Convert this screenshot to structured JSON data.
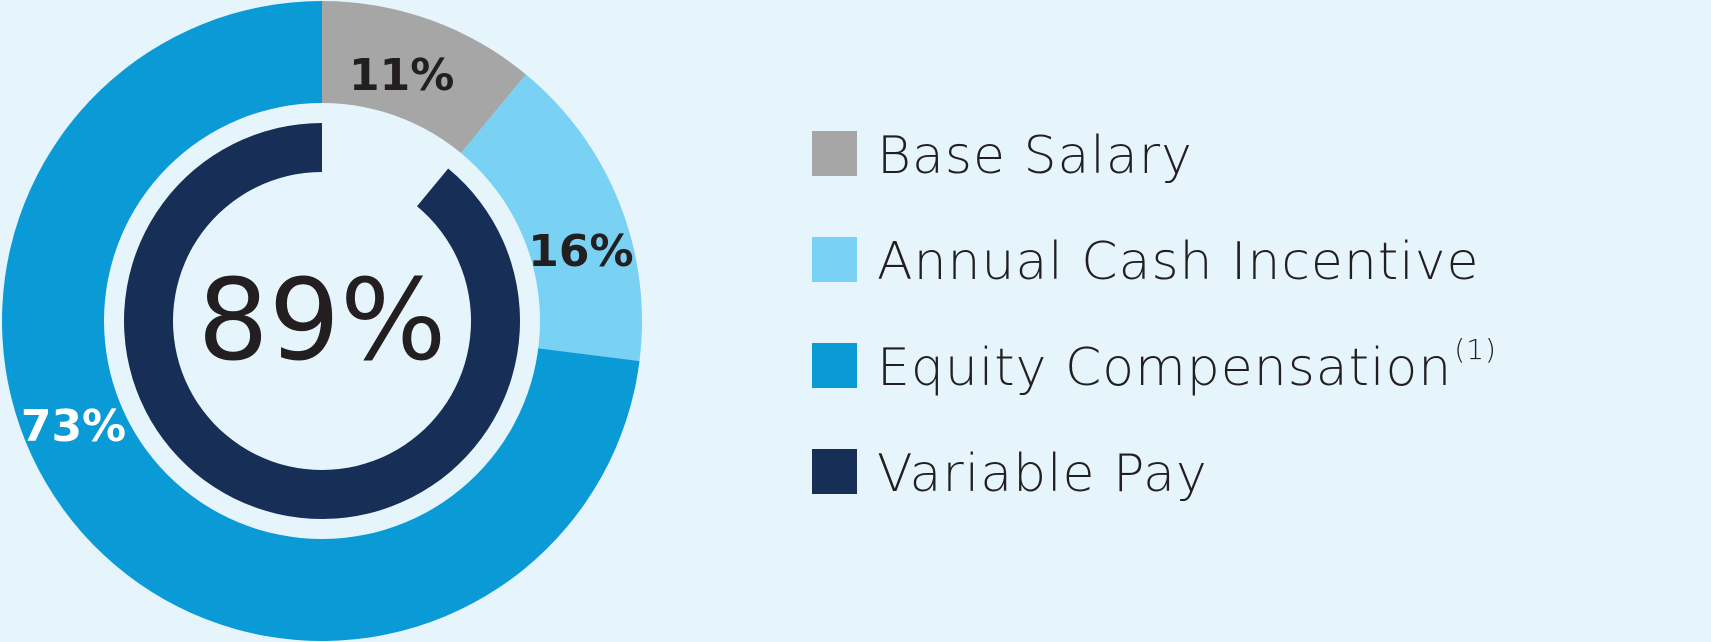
{
  "chart_data": {
    "type": "donut",
    "title": "",
    "outer_ring": {
      "slices": [
        {
          "name": "Base Salary",
          "value": 11,
          "label": "11%",
          "color": "#a6a6a6",
          "label_color": "#231f20"
        },
        {
          "name": "Annual Cash Incentive",
          "value": 16,
          "label": "16%",
          "color": "#79d1f3",
          "label_color": "#231f20"
        },
        {
          "name": "Equity Compensation",
          "value": 73,
          "label": "73%",
          "color": "#0a9ad6",
          "label_color": "#ffffff"
        }
      ]
    },
    "inner_ring": {
      "name": "Variable Pay",
      "value": 89,
      "color": "#172f57"
    },
    "center_label": "89%",
    "legend": [
      {
        "label": "Base Salary",
        "superscript": "",
        "color": "#a6a6a6"
      },
      {
        "label": "Annual Cash Incentive",
        "superscript": "",
        "color": "#79d1f3"
      },
      {
        "label": "Equity Compensation",
        "superscript": "(1)",
        "color": "#0a9ad6"
      },
      {
        "label": "Variable Pay",
        "superscript": "",
        "color": "#172f57"
      }
    ],
    "legend_position": "right"
  }
}
